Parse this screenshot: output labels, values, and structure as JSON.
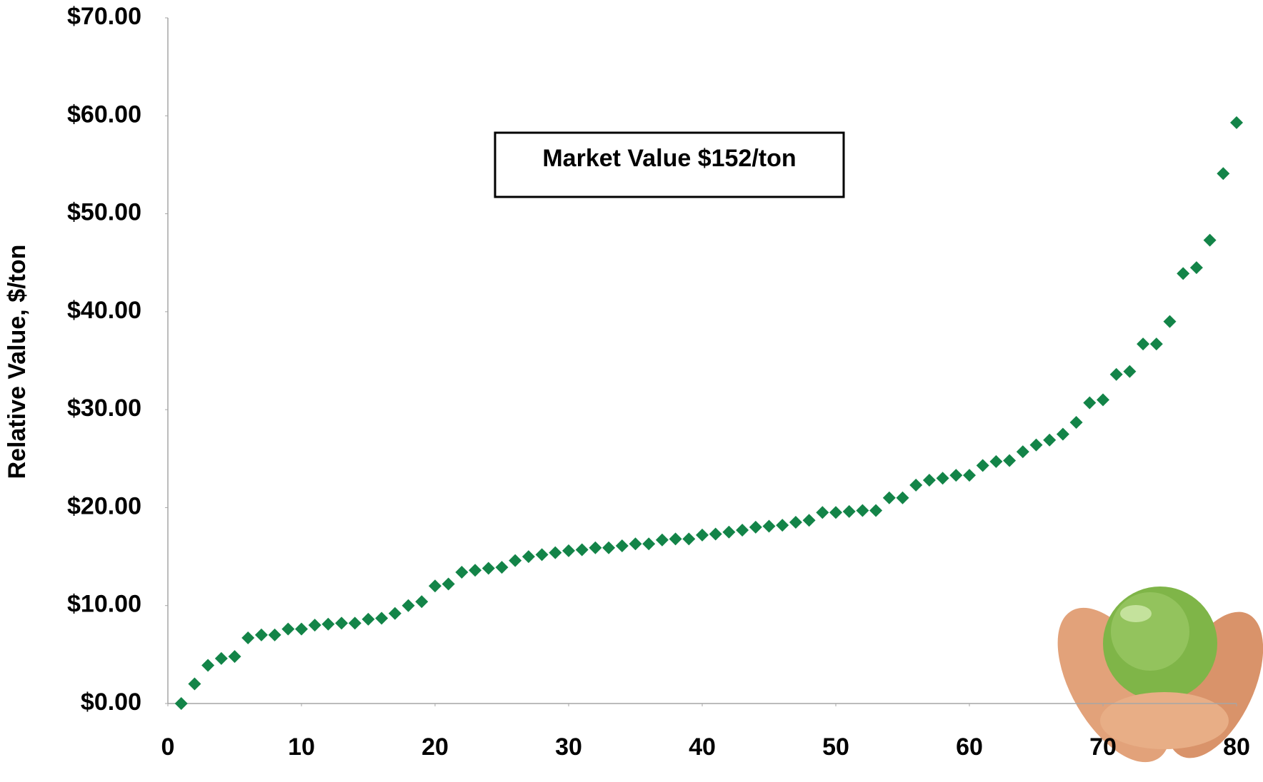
{
  "chart_data": {
    "type": "scatter",
    "y_label": "Relative Value, $/ton",
    "annotation": "Market Value $152/ton",
    "x": [
      1,
      2,
      3,
      4,
      5,
      6,
      7,
      8,
      9,
      10,
      11,
      12,
      13,
      14,
      15,
      16,
      17,
      18,
      19,
      20,
      21,
      22,
      23,
      24,
      25,
      26,
      27,
      28,
      29,
      30,
      31,
      32,
      33,
      34,
      35,
      36,
      37,
      38,
      39,
      40,
      41,
      42,
      43,
      44,
      45,
      46,
      47,
      48,
      49,
      50,
      51,
      52,
      53,
      54,
      55,
      56,
      57,
      58,
      59,
      60,
      61,
      62,
      63,
      64,
      65,
      66,
      67,
      68,
      69,
      70,
      71,
      72,
      73,
      74,
      75,
      76,
      77,
      78,
      79,
      80
    ],
    "series": [
      {
        "color": "#138448",
        "values": [
          0,
          2.0,
          3.9,
          4.6,
          4.8,
          6.7,
          7.0,
          7.0,
          7.6,
          7.6,
          8.0,
          8.1,
          8.2,
          8.2,
          8.6,
          8.7,
          9.2,
          10.0,
          10.4,
          12.0,
          12.2,
          13.4,
          13.6,
          13.8,
          13.9,
          14.6,
          15.0,
          15.2,
          15.4,
          15.6,
          15.7,
          15.9,
          15.9,
          16.1,
          16.3,
          16.3,
          16.7,
          16.8,
          16.8,
          17.2,
          17.3,
          17.5,
          17.7,
          18.0,
          18.1,
          18.2,
          18.5,
          18.7,
          19.5,
          19.5,
          19.6,
          19.7,
          19.7,
          21.0,
          21.0,
          22.3,
          22.8,
          23.0,
          23.3,
          23.3,
          24.3,
          24.7,
          24.8,
          25.7,
          26.4,
          26.9,
          27.5,
          28.7,
          30.7,
          31.0,
          33.6,
          33.9,
          36.7,
          36.7,
          39.0,
          43.9,
          44.5,
          47.3,
          54.1,
          59.3
        ]
      }
    ],
    "xlim": [
      0,
      80
    ],
    "xticks": [
      0,
      10,
      20,
      30,
      40,
      50,
      60,
      70,
      80
    ],
    "ylim": [
      0,
      70
    ],
    "yticks": [
      {
        "value": 0,
        "label": "$0.00"
      },
      {
        "value": 10,
        "label": "$10.00"
      },
      {
        "value": 20,
        "label": "$20.00"
      },
      {
        "value": 30,
        "label": "$30.00"
      },
      {
        "value": 40,
        "label": "$40.00"
      },
      {
        "value": 50,
        "label": "$50.00"
      },
      {
        "value": 60,
        "label": "$60.00"
      },
      {
        "value": 70,
        "label": "$70.00"
      }
    ],
    "grid": false
  }
}
